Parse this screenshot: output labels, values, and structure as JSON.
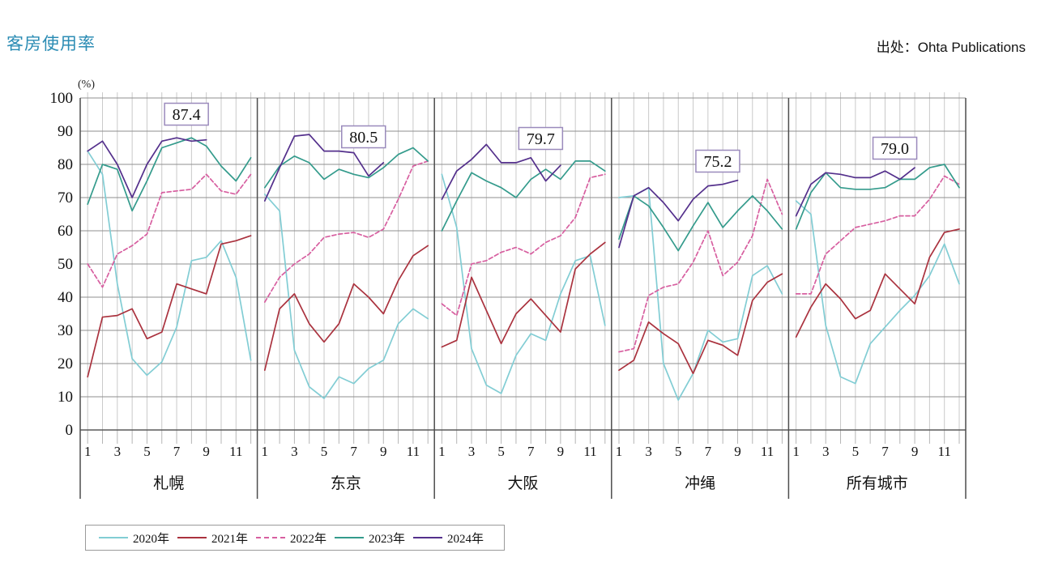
{
  "page": {
    "title": "客房使用率",
    "source": "出处：Ohta Publications"
  },
  "chart_data": {
    "type": "line",
    "title": "客房使用率",
    "unit_label": "(%)",
    "ylim": [
      0,
      100
    ],
    "y_ticks": [
      100,
      90,
      80,
      70,
      60,
      50,
      40,
      30,
      20,
      10,
      0
    ],
    "x_months": [
      1,
      2,
      3,
      4,
      5,
      6,
      7,
      8,
      9,
      10,
      11,
      12
    ],
    "x_tick_labeled_months": [
      1,
      3,
      5,
      7,
      9,
      11
    ],
    "x_tick_labels": [
      "1",
      "3",
      "5",
      "7",
      "9",
      "11"
    ],
    "grid": true,
    "legend_position": "bottom-left",
    "series_meta": [
      {
        "name": "2020年",
        "color": "#82cdd4",
        "dash": false
      },
      {
        "name": "2021年",
        "color": "#aa323e",
        "dash": false
      },
      {
        "name": "2022年",
        "color": "#d75fa0",
        "dash": true
      },
      {
        "name": "2023年",
        "color": "#349b8c",
        "dash": false
      },
      {
        "name": "2024年",
        "color": "#54308c",
        "dash": false
      }
    ],
    "note": "2024年 series ends at month 9; annotation shows latest 2024 value",
    "panels": [
      {
        "city": "札幌",
        "annotation": "87.4",
        "series": [
          {
            "name": "2020年",
            "values": [
              84,
              77,
              44,
              21.5,
              16.5,
              20.5,
              31,
              51,
              52,
              57,
              46,
              21
            ]
          },
          {
            "name": "2021年",
            "values": [
              16,
              34,
              34.5,
              36.5,
              27.5,
              29.5,
              44,
              42.5,
              41,
              56,
              57,
              58.5
            ]
          },
          {
            "name": "2022年",
            "values": [
              50,
              43,
              53,
              55.5,
              59,
              71.5,
              72,
              72.5,
              77,
              72,
              71,
              77
            ]
          },
          {
            "name": "2023年",
            "values": [
              68,
              80,
              78.5,
              66,
              75,
              85,
              86.5,
              88,
              85.5,
              79.5,
              75,
              82
            ]
          },
          {
            "name": "2024年",
            "values": [
              84,
              87,
              80,
              70,
              80,
              87,
              88,
              87,
              87.4
            ]
          }
        ]
      },
      {
        "city": "东京",
        "annotation": "80.5",
        "series": [
          {
            "name": "2020年",
            "values": [
              71,
              66,
              24,
              13,
              9.5,
              16,
              14,
              18.5,
              21,
              32,
              36.5,
              33.5
            ]
          },
          {
            "name": "2021年",
            "values": [
              18,
              36.5,
              41,
              32,
              26.5,
              32,
              44,
              40,
              35,
              45,
              52.5,
              55.5
            ]
          },
          {
            "name": "2022年",
            "values": [
              38.5,
              46,
              50,
              53,
              58,
              59,
              59.5,
              58,
              60.5,
              69.5,
              79.5,
              81
            ]
          },
          {
            "name": "2023年",
            "values": [
              73,
              79.5,
              82.5,
              80.5,
              75.5,
              78.5,
              77,
              76,
              79,
              83,
              85,
              81
            ]
          },
          {
            "name": "2024年",
            "values": [
              69,
              79,
              88.5,
              89,
              84,
              84,
              83.5,
              76.5,
              80.5
            ]
          }
        ]
      },
      {
        "city": "大阪",
        "annotation": "79.7",
        "series": [
          {
            "name": "2020年",
            "values": [
              77,
              61,
              24.5,
              13.5,
              11,
              22.5,
              29,
              27,
              41,
              51,
              52.5,
              31.5
            ]
          },
          {
            "name": "2021年",
            "values": [
              25,
              27,
              46,
              36,
              26,
              35,
              39.5,
              34.5,
              29.5,
              48.5,
              53,
              56.5
            ]
          },
          {
            "name": "2022年",
            "values": [
              38,
              34.5,
              50,
              51,
              53.5,
              55,
              53,
              56.5,
              58.5,
              64,
              76,
              77
            ]
          },
          {
            "name": "2023年",
            "values": [
              60,
              69,
              77.5,
              75,
              73,
              70,
              75.5,
              78.5,
              75.5,
              81,
              81,
              78
            ]
          },
          {
            "name": "2024年",
            "values": [
              69.5,
              78,
              81.5,
              86,
              80.5,
              80.5,
              82,
              75,
              79.7
            ]
          }
        ]
      },
      {
        "city": "冲绳",
        "annotation": "75.2",
        "series": [
          {
            "name": "2020年",
            "values": [
              70,
              70.5,
              73,
              20,
              9,
              17,
              30,
              26.5,
              27.5,
              46.5,
              49.5,
              41
            ]
          },
          {
            "name": "2021年",
            "values": [
              18,
              21,
              32.5,
              29,
              26,
              17,
              27,
              25.5,
              22.5,
              39,
              44.5,
              47
            ]
          },
          {
            "name": "2022年",
            "values": [
              23.5,
              24.5,
              40.5,
              43,
              44,
              50.5,
              60,
              46.5,
              50.5,
              58.5,
              75.5,
              65
            ]
          },
          {
            "name": "2023年",
            "values": [
              57.5,
              70.5,
              67.5,
              61,
              54,
              61.5,
              68.5,
              61,
              66,
              70.5,
              66,
              60.5
            ]
          },
          {
            "name": "2024年",
            "values": [
              55,
              70.5,
              73,
              68.5,
              63,
              69.5,
              73.5,
              74,
              75.2
            ]
          }
        ]
      },
      {
        "city": "所有城市",
        "annotation": "79.0",
        "series": [
          {
            "name": "2020年",
            "values": [
              69,
              65,
              31.5,
              16,
              14,
              26,
              31,
              36,
              40.5,
              46.5,
              56,
              44
            ]
          },
          {
            "name": "2021年",
            "values": [
              28,
              37,
              44,
              39.5,
              33.5,
              36,
              47,
              42.5,
              38,
              52,
              59.5,
              60.5
            ]
          },
          {
            "name": "2022年",
            "values": [
              41,
              41,
              53,
              57,
              61,
              62,
              63,
              64.5,
              64.5,
              69.5,
              76.5,
              74
            ]
          },
          {
            "name": "2023年",
            "values": [
              60.5,
              71.5,
              77.5,
              73,
              72.5,
              72.5,
              73,
              75.5,
              75.5,
              79,
              80,
              73
            ]
          },
          {
            "name": "2024年",
            "values": [
              64.5,
              74,
              77.5,
              77,
              76,
              76,
              78,
              75.5,
              79
            ]
          }
        ]
      }
    ],
    "colors": {
      "title": "#2b8cb4",
      "grid_major": "#8f8f8f",
      "grid_minor": "#c9c9c9",
      "frame": "#4d4d4d",
      "annotation_border": "#9a8abc"
    }
  }
}
